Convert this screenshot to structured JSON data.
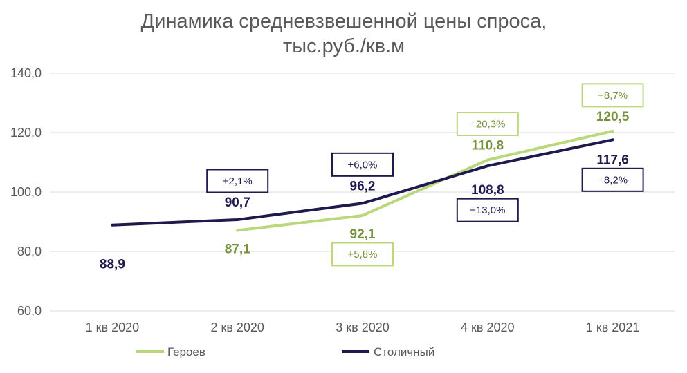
{
  "chart_data": {
    "type": "line",
    "title_lines": [
      "Динамика средневзвешенной  цены спроса,",
      "тыс.руб./кв.м"
    ],
    "categories": [
      "1 кв 2020",
      "2 кв 2020",
      "3 кв 2020",
      "4 кв 2020",
      "1 кв 2021"
    ],
    "y_ticks": [
      "60,0",
      "80,0",
      "100,0",
      "120,0",
      "140,0"
    ],
    "ylim": [
      60,
      140
    ],
    "grid": true,
    "legend_position": "bottom",
    "colors": {
      "geroev": "#b8d87a",
      "stolichny": "#1f1a4d",
      "geroev_text": "#76923c"
    },
    "series": [
      {
        "name": "Героев",
        "values": [
          null,
          87.1,
          92.1,
          110.8,
          120.5
        ],
        "value_labels": [
          null,
          "87,1",
          "92,1",
          "110,8",
          "120,5"
        ],
        "change_labels": [
          null,
          null,
          "+5,8%",
          "+20,3%",
          "+8,7%"
        ]
      },
      {
        "name": "Столичный",
        "values": [
          88.9,
          90.7,
          96.2,
          108.8,
          117.6
        ],
        "value_labels": [
          "88,9",
          "90,7",
          "96,2",
          "108,8",
          "117,6"
        ],
        "change_labels": [
          null,
          "+2,1%",
          "+6,0%",
          "+13,0%",
          "+8,2%"
        ]
      }
    ]
  }
}
